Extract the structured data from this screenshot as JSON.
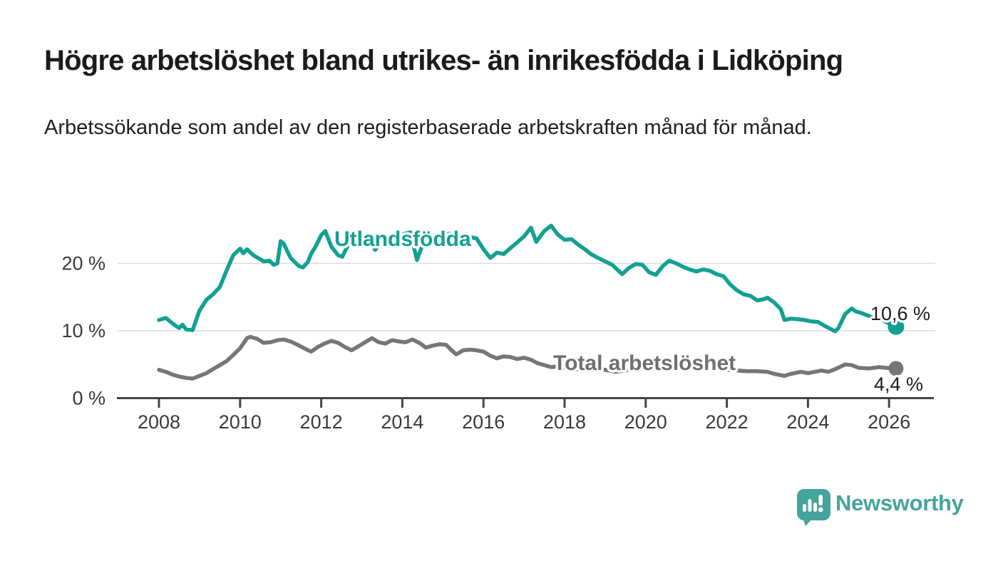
{
  "footer": {
    "brand": "Newsworthy"
  },
  "colors": {
    "series_foreign": "#12a091",
    "series_foreign_label": "#12a091",
    "series_total": "#76767a",
    "series_total_label": "#6e6e73",
    "brand": "#45a49d",
    "grid": "#dcdcdc",
    "axis": "#454545",
    "axis_text": "#3a3a3a",
    "value_text": "#1d1d1f",
    "background": "#ffffff"
  },
  "chart_data": {
    "type": "line",
    "title": "Högre arbetslöshet bland utrikes- än inrikesfödda i Lidköping",
    "subtitle": "Arbetssökande som andel av den registerbaserade arbetskraften månad för månad.",
    "xlabel": "",
    "ylabel": "",
    "x_axis": {
      "ticks": [
        2008,
        2010,
        2012,
        2014,
        2016,
        2018,
        2020,
        2022,
        2024,
        2026
      ],
      "range": [
        2007.0,
        2027.1
      ]
    },
    "y_axis": {
      "ticks": [
        0,
        10,
        20
      ],
      "suffix": " %",
      "range": [
        0,
        27
      ],
      "grid": true
    },
    "legend_position": "inline-labels",
    "series": [
      {
        "id": "utlandsfodda",
        "name": "Utlandsfödda",
        "color": "#12a091",
        "end_label": "10,6 %",
        "end_value": 10.6,
        "points": [
          [
            2008.0,
            11.6
          ],
          [
            2008.17,
            11.9
          ],
          [
            2008.33,
            11.1
          ],
          [
            2008.42,
            10.7
          ],
          [
            2008.5,
            10.4
          ],
          [
            2008.58,
            10.9
          ],
          [
            2008.67,
            10.2
          ],
          [
            2008.83,
            10.1
          ],
          [
            2009.0,
            13.0
          ],
          [
            2009.17,
            14.6
          ],
          [
            2009.33,
            15.4
          ],
          [
            2009.5,
            16.5
          ],
          [
            2009.67,
            19.0
          ],
          [
            2009.83,
            21.2
          ],
          [
            2010.0,
            22.2
          ],
          [
            2010.08,
            21.5
          ],
          [
            2010.17,
            22.1
          ],
          [
            2010.33,
            21.2
          ],
          [
            2010.5,
            20.6
          ],
          [
            2010.58,
            20.3
          ],
          [
            2010.72,
            20.4
          ],
          [
            2010.83,
            19.8
          ],
          [
            2010.92,
            20.0
          ],
          [
            2011.0,
            23.3
          ],
          [
            2011.08,
            22.9
          ],
          [
            2011.17,
            21.7
          ],
          [
            2011.25,
            20.8
          ],
          [
            2011.33,
            20.3
          ],
          [
            2011.45,
            19.6
          ],
          [
            2011.55,
            19.4
          ],
          [
            2011.67,
            20.2
          ],
          [
            2011.75,
            21.4
          ],
          [
            2011.87,
            22.6
          ],
          [
            2012.0,
            24.2
          ],
          [
            2012.1,
            24.8
          ],
          [
            2012.25,
            22.5
          ],
          [
            2012.42,
            21.2
          ],
          [
            2012.52,
            21.0
          ],
          [
            2012.67,
            22.8
          ],
          [
            2012.83,
            23.6
          ],
          [
            2013.0,
            23.2
          ],
          [
            2013.17,
            23.6
          ],
          [
            2013.33,
            22.0
          ],
          [
            2013.5,
            23.4
          ],
          [
            2013.75,
            24.0
          ],
          [
            2014.0,
            24.3
          ],
          [
            2014.2,
            24.6
          ],
          [
            2014.36,
            20.5
          ],
          [
            2014.5,
            22.8
          ],
          [
            2014.67,
            23.5
          ],
          [
            2014.83,
            23.8
          ],
          [
            2015.0,
            24.2
          ],
          [
            2015.17,
            24.4
          ],
          [
            2015.33,
            24.0
          ],
          [
            2015.5,
            24.1
          ],
          [
            2015.67,
            23.9
          ],
          [
            2015.83,
            23.7
          ],
          [
            2016.0,
            22.1
          ],
          [
            2016.17,
            20.8
          ],
          [
            2016.33,
            21.6
          ],
          [
            2016.5,
            21.4
          ],
          [
            2016.67,
            22.3
          ],
          [
            2016.83,
            23.1
          ],
          [
            2017.0,
            24.0
          ],
          [
            2017.17,
            25.3
          ],
          [
            2017.3,
            23.2
          ],
          [
            2017.5,
            24.8
          ],
          [
            2017.67,
            25.6
          ],
          [
            2017.83,
            24.3
          ],
          [
            2018.0,
            23.5
          ],
          [
            2018.17,
            23.6
          ],
          [
            2018.33,
            22.8
          ],
          [
            2018.5,
            22.1
          ],
          [
            2018.67,
            21.3
          ],
          [
            2018.83,
            20.8
          ],
          [
            2019.0,
            20.3
          ],
          [
            2019.17,
            19.8
          ],
          [
            2019.33,
            18.9
          ],
          [
            2019.42,
            18.4
          ],
          [
            2019.58,
            19.3
          ],
          [
            2019.75,
            19.9
          ],
          [
            2019.92,
            19.8
          ],
          [
            2020.08,
            18.7
          ],
          [
            2020.25,
            18.3
          ],
          [
            2020.42,
            19.6
          ],
          [
            2020.58,
            20.4
          ],
          [
            2020.75,
            20.0
          ],
          [
            2020.92,
            19.5
          ],
          [
            2021.08,
            19.1
          ],
          [
            2021.25,
            18.8
          ],
          [
            2021.42,
            19.1
          ],
          [
            2021.58,
            18.9
          ],
          [
            2021.75,
            18.4
          ],
          [
            2021.92,
            18.1
          ],
          [
            2022.08,
            16.9
          ],
          [
            2022.25,
            16.0
          ],
          [
            2022.42,
            15.4
          ],
          [
            2022.58,
            15.2
          ],
          [
            2022.75,
            14.5
          ],
          [
            2022.92,
            14.7
          ],
          [
            2023.0,
            14.9
          ],
          [
            2023.17,
            14.2
          ],
          [
            2023.33,
            13.2
          ],
          [
            2023.42,
            11.6
          ],
          [
            2023.58,
            11.8
          ],
          [
            2023.75,
            11.7
          ],
          [
            2023.92,
            11.6
          ],
          [
            2024.08,
            11.4
          ],
          [
            2024.25,
            11.3
          ],
          [
            2024.42,
            10.7
          ],
          [
            2024.58,
            10.2
          ],
          [
            2024.67,
            9.9
          ],
          [
            2024.75,
            10.4
          ],
          [
            2024.92,
            12.5
          ],
          [
            2025.08,
            13.3
          ],
          [
            2025.17,
            12.9
          ],
          [
            2025.33,
            12.6
          ],
          [
            2025.5,
            12.2
          ],
          [
            2025.67,
            11.8
          ],
          [
            2025.75,
            12.0
          ],
          [
            2025.92,
            11.3
          ],
          [
            2026.08,
            10.9
          ],
          [
            2026.17,
            10.6
          ]
        ]
      },
      {
        "id": "total",
        "name": "Total arbetslöshet",
        "color": "#76767a",
        "end_label": "4,4 %",
        "end_value": 4.4,
        "points": [
          [
            2008.0,
            4.2
          ],
          [
            2008.17,
            3.9
          ],
          [
            2008.33,
            3.5
          ],
          [
            2008.5,
            3.2
          ],
          [
            2008.67,
            3.0
          ],
          [
            2008.83,
            2.9
          ],
          [
            2009.0,
            3.3
          ],
          [
            2009.17,
            3.7
          ],
          [
            2009.33,
            4.3
          ],
          [
            2009.5,
            4.9
          ],
          [
            2009.67,
            5.5
          ],
          [
            2009.83,
            6.4
          ],
          [
            2010.0,
            7.4
          ],
          [
            2010.17,
            8.9
          ],
          [
            2010.25,
            9.1
          ],
          [
            2010.42,
            8.8
          ],
          [
            2010.58,
            8.2
          ],
          [
            2010.75,
            8.3
          ],
          [
            2010.92,
            8.6
          ],
          [
            2011.08,
            8.7
          ],
          [
            2011.25,
            8.4
          ],
          [
            2011.42,
            7.9
          ],
          [
            2011.58,
            7.4
          ],
          [
            2011.75,
            6.9
          ],
          [
            2011.92,
            7.6
          ],
          [
            2012.08,
            8.1
          ],
          [
            2012.25,
            8.5
          ],
          [
            2012.42,
            8.2
          ],
          [
            2012.58,
            7.6
          ],
          [
            2012.75,
            7.1
          ],
          [
            2012.92,
            7.7
          ],
          [
            2013.08,
            8.3
          ],
          [
            2013.25,
            8.9
          ],
          [
            2013.42,
            8.3
          ],
          [
            2013.58,
            8.1
          ],
          [
            2013.75,
            8.6
          ],
          [
            2013.92,
            8.4
          ],
          [
            2014.08,
            8.3
          ],
          [
            2014.25,
            8.7
          ],
          [
            2014.42,
            8.2
          ],
          [
            2014.58,
            7.5
          ],
          [
            2014.75,
            7.8
          ],
          [
            2014.92,
            8.0
          ],
          [
            2015.08,
            7.9
          ],
          [
            2015.25,
            6.9
          ],
          [
            2015.33,
            6.5
          ],
          [
            2015.5,
            7.1
          ],
          [
            2015.67,
            7.2
          ],
          [
            2015.83,
            7.1
          ],
          [
            2016.0,
            6.9
          ],
          [
            2016.17,
            6.3
          ],
          [
            2016.33,
            5.9
          ],
          [
            2016.5,
            6.2
          ],
          [
            2016.67,
            6.1
          ],
          [
            2016.83,
            5.8
          ],
          [
            2017.0,
            6.0
          ],
          [
            2017.17,
            5.7
          ],
          [
            2017.33,
            5.2
          ],
          [
            2017.5,
            4.9
          ],
          [
            2017.67,
            4.6
          ],
          [
            2017.83,
            4.7
          ],
          [
            2018.0,
            4.5
          ],
          [
            2018.25,
            4.3
          ],
          [
            2018.5,
            4.2
          ],
          [
            2018.75,
            4.3
          ],
          [
            2019.0,
            4.2
          ],
          [
            2019.25,
            3.9
          ],
          [
            2019.5,
            4.1
          ],
          [
            2019.75,
            4.4
          ],
          [
            2020.0,
            4.7
          ],
          [
            2020.25,
            5.2
          ],
          [
            2020.42,
            5.4
          ],
          [
            2020.58,
            5.3
          ],
          [
            2020.75,
            5.1
          ],
          [
            2021.0,
            4.9
          ],
          [
            2021.25,
            4.6
          ],
          [
            2021.5,
            4.4
          ],
          [
            2021.75,
            4.3
          ],
          [
            2022.0,
            4.2
          ],
          [
            2022.25,
            4.1
          ],
          [
            2022.5,
            4.0
          ],
          [
            2022.75,
            4.0
          ],
          [
            2023.0,
            3.9
          ],
          [
            2023.17,
            3.6
          ],
          [
            2023.42,
            3.3
          ],
          [
            2023.58,
            3.6
          ],
          [
            2023.83,
            3.9
          ],
          [
            2024.0,
            3.7
          ],
          [
            2024.17,
            3.9
          ],
          [
            2024.33,
            4.1
          ],
          [
            2024.5,
            3.9
          ],
          [
            2024.67,
            4.3
          ],
          [
            2024.92,
            5.0
          ],
          [
            2025.08,
            4.9
          ],
          [
            2025.25,
            4.5
          ],
          [
            2025.5,
            4.4
          ],
          [
            2025.75,
            4.6
          ],
          [
            2025.92,
            4.5
          ],
          [
            2026.17,
            4.4
          ]
        ]
      }
    ]
  }
}
